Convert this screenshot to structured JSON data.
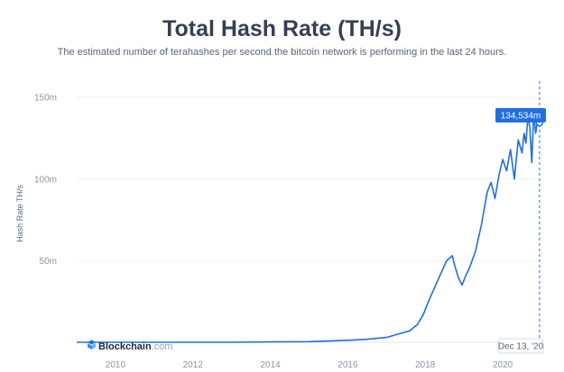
{
  "header": {
    "title": "Total Hash Rate (TH/s)",
    "subtitle": "The estimated number of terahashes per second the bitcoin network is performing in the last 24 hours."
  },
  "brand": {
    "name": "Blockchain",
    "suffix": ".com",
    "color": "#0c6cf2"
  },
  "tooltip": {
    "value_label": "134,534m",
    "date_label": "Dec 13, '20"
  },
  "colors": {
    "line": "#1f6fe0",
    "tooltip_bg": "#1f6fe0",
    "grid": "#f0f2f5"
  },
  "chart_data": {
    "type": "line",
    "title": "Total Hash Rate (TH/s)",
    "ylabel": "Hash Rate TH/s",
    "xlabel": "",
    "x_ticks": [
      "2010",
      "2012",
      "2014",
      "2016",
      "2018",
      "2020"
    ],
    "y_ticks": [
      "50m",
      "100m",
      "150m"
    ],
    "xlim": [
      2009.0,
      2021.0
    ],
    "ylim": [
      0,
      160
    ],
    "grid": "horizontal",
    "series": [
      {
        "x": [
          2009.0,
          2011.0,
          2013.0,
          2014.0,
          2015.0,
          2016.0,
          2016.5,
          2017.0,
          2017.3,
          2017.6,
          2017.8,
          2017.95,
          2018.1,
          2018.25,
          2018.4,
          2018.55,
          2018.7,
          2018.75,
          2018.85,
          2018.95,
          2019.05,
          2019.15,
          2019.3,
          2019.45,
          2019.6,
          2019.7,
          2019.8,
          2019.9,
          2020.0,
          2020.1,
          2020.2,
          2020.3,
          2020.4,
          2020.5,
          2020.55,
          2020.6,
          2020.65,
          2020.7,
          2020.75,
          2020.8,
          2020.85,
          2020.9,
          2020.95
        ],
        "y": [
          0,
          0,
          0,
          0.2,
          0.4,
          1.2,
          1.8,
          3,
          5,
          7,
          11,
          17,
          26,
          34,
          42,
          50,
          53,
          48,
          40,
          35,
          41,
          46,
          56,
          72,
          92,
          98,
          88,
          102,
          112,
          105,
          118,
          100,
          124,
          116,
          128,
          122,
          138,
          132,
          110,
          140,
          128,
          136,
          134.5
        ]
      }
    ],
    "annotations": [
      "134,534m",
      "Dec 13, '20"
    ]
  }
}
